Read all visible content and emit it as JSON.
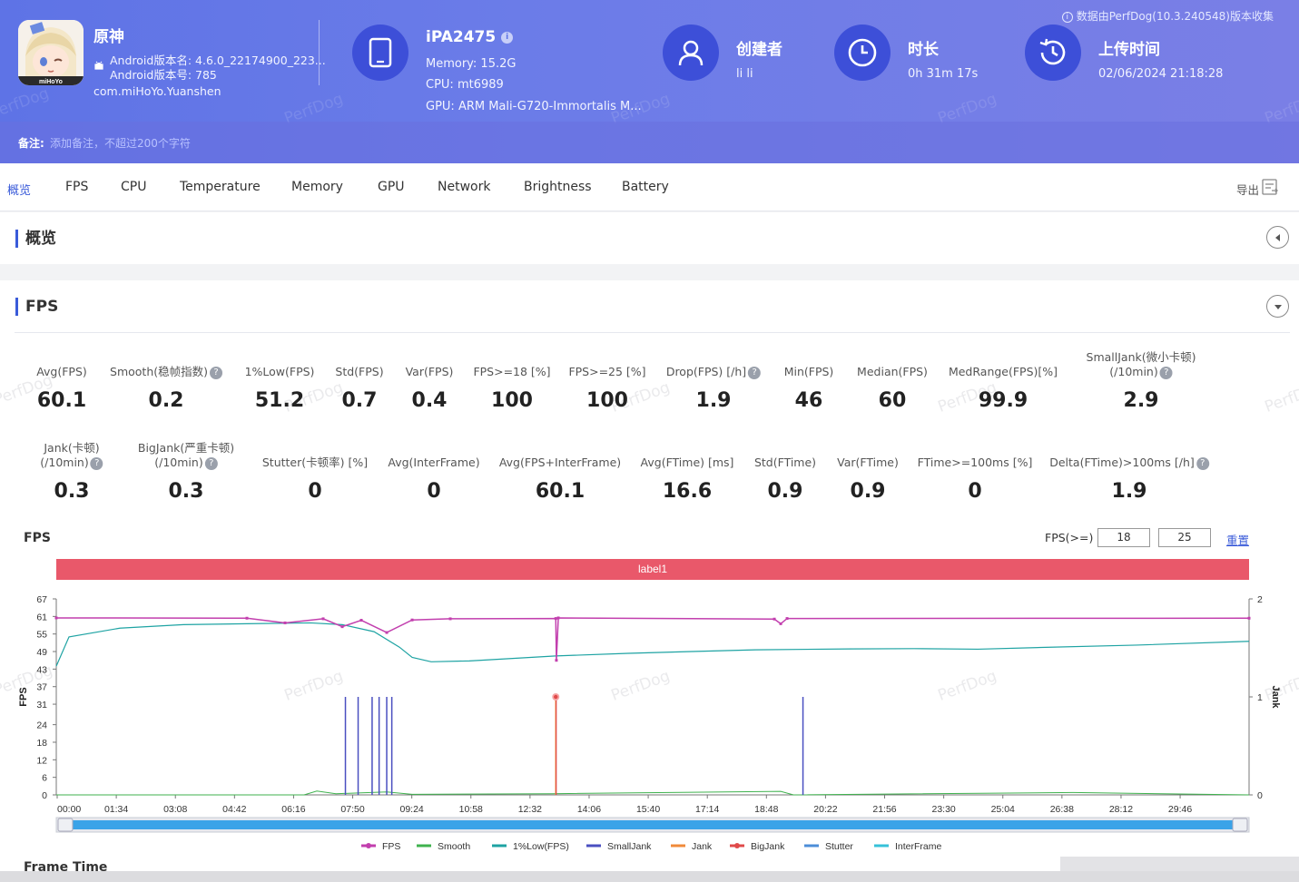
{
  "header": {
    "note": "数据由PerfDog(10.3.240548)版本收集",
    "app": {
      "name": "原神",
      "version_name": "Android版本名: 4.6.0_22174900_223...",
      "version_code": "Android版本号: 785",
      "package": "com.miHoYo.Yuanshen",
      "icon_text": "miHoYo"
    },
    "device": {
      "name": "iPA2475",
      "memory": "Memory: 15.2G",
      "cpu": "CPU: mt6989",
      "gpu": "GPU: ARM Mali-G720-Immortalis M..."
    },
    "creator": {
      "title": "创建者",
      "value": "li li"
    },
    "duration": {
      "title": "时长",
      "value": "0h 31m 17s"
    },
    "upload": {
      "title": "上传时间",
      "value": "02/06/2024 21:18:28"
    },
    "remark_label": "备注:",
    "remark_placeholder": "添加备注，不超过200个字符"
  },
  "tabs": [
    "概览",
    "FPS",
    "CPU",
    "Temperature",
    "Memory",
    "GPU",
    "Network",
    "Brightness",
    "Battery"
  ],
  "export_label": "导出",
  "overview_title": "概览",
  "fps_section_title": "FPS",
  "stats_row1": [
    {
      "label": "Avg(FPS)",
      "value": "60.1"
    },
    {
      "label": "Smooth(稳帧指数)",
      "value": "0.2",
      "help": true
    },
    {
      "label": "1%Low(FPS)",
      "value": "51.2"
    },
    {
      "label": "Std(FPS)",
      "value": "0.7"
    },
    {
      "label": "Var(FPS)",
      "value": "0.4"
    },
    {
      "label": "FPS>=18 [%]",
      "value": "100"
    },
    {
      "label": "FPS>=25 [%]",
      "value": "100"
    },
    {
      "label": "Drop(FPS) [/h]",
      "value": "1.9",
      "help": true
    },
    {
      "label": "Min(FPS)",
      "value": "46"
    },
    {
      "label": "Median(FPS)",
      "value": "60"
    },
    {
      "label": "MedRange(FPS)[%]",
      "value": "99.9"
    },
    {
      "label": "SmallJank(微小卡顿)",
      "label2": "(/10min)",
      "value": "2.9",
      "help": true
    }
  ],
  "stats_row2": [
    {
      "label": "Jank(卡顿)",
      "label2": "(/10min)",
      "value": "0.3",
      "help": true
    },
    {
      "label": "BigJank(严重卡顿)",
      "label2": "(/10min)",
      "value": "0.3",
      "help": true
    },
    {
      "label": "Stutter(卡顿率) [%]",
      "value": "0"
    },
    {
      "label": "Avg(InterFrame)",
      "value": "0"
    },
    {
      "label": "Avg(FPS+InterFrame)",
      "value": "60.1"
    },
    {
      "label": "Avg(FTime) [ms]",
      "value": "16.6"
    },
    {
      "label": "Std(FTime)",
      "value": "0.9"
    },
    {
      "label": "Var(FTime)",
      "value": "0.9"
    },
    {
      "label": "FTime>=100ms [%]",
      "value": "0"
    },
    {
      "label": "Delta(FTime)>100ms [/h]",
      "value": "1.9",
      "help": true
    }
  ],
  "chart_title": "FPS",
  "fps_threshold_label": "FPS(>=)",
  "fps_threshold_1": "18",
  "fps_threshold_2": "25",
  "reset_label": "重置",
  "frame_time_title": "Frame Time",
  "watermark": "PerfDog",
  "colors": {
    "accent": "#3a5bd9",
    "fps": "#c23fae",
    "smooth": "#3fb24e",
    "low": "#1ea3a3",
    "smalljank": "#4a4fc0",
    "jank": "#f08a3a",
    "bigjank": "#e04a4a",
    "stutter": "#4c8ed8",
    "interframe": "#36c1d9",
    "label_band": "#e9586a"
  },
  "chart_data": {
    "type": "line",
    "label_band": "label1",
    "x_ticks": [
      "00:00",
      "01:34",
      "03:08",
      "04:42",
      "06:16",
      "07:50",
      "09:24",
      "10:58",
      "12:32",
      "14:06",
      "15:40",
      "17:14",
      "18:48",
      "20:22",
      "21:56",
      "23:30",
      "25:04",
      "26:38",
      "28:12",
      "29:46"
    ],
    "y_ticks": [
      0,
      6,
      12,
      18,
      24,
      31,
      37,
      43,
      49,
      55,
      61,
      67
    ],
    "ylim": [
      0,
      67
    ],
    "ylabel": "FPS",
    "y2_ticks": [
      0,
      1,
      2
    ],
    "y2lim": [
      0,
      2
    ],
    "y2label": "Jank",
    "x_range_seconds": [
      0,
      1877
    ],
    "legend_position": "bottom",
    "series": [
      {
        "name": "FPS",
        "points": [
          [
            0,
            60.5
          ],
          [
            300,
            60.4
          ],
          [
            360,
            58.8
          ],
          [
            420,
            60.2
          ],
          [
            450,
            57.5
          ],
          [
            480,
            59.7
          ],
          [
            520,
            55.5
          ],
          [
            560,
            59.8
          ],
          [
            620,
            60.2
          ],
          [
            786,
            60.3
          ],
          [
            787,
            46.0
          ],
          [
            790,
            60.5
          ],
          [
            1130,
            60.1
          ],
          [
            1140,
            58.5
          ],
          [
            1150,
            60.3
          ],
          [
            1877,
            60.4
          ]
        ]
      },
      {
        "name": "Smooth",
        "points": [
          [
            0,
            0
          ],
          [
            390,
            0
          ],
          [
            410,
            1.3
          ],
          [
            440,
            0.4
          ],
          [
            520,
            1.0
          ],
          [
            560,
            0.2
          ],
          [
            780,
            0.4
          ],
          [
            1140,
            1.2
          ],
          [
            1160,
            0
          ],
          [
            1600,
            0.8
          ],
          [
            1877,
            0
          ]
        ]
      },
      {
        "name": "1%Low(FPS)",
        "points": [
          [
            0,
            44
          ],
          [
            20,
            54
          ],
          [
            100,
            57
          ],
          [
            200,
            58.2
          ],
          [
            300,
            58.5
          ],
          [
            400,
            58.8
          ],
          [
            450,
            58.2
          ],
          [
            500,
            55.8
          ],
          [
            540,
            50.5
          ],
          [
            560,
            47
          ],
          [
            590,
            45.5
          ],
          [
            650,
            45.8
          ],
          [
            786,
            47.5
          ],
          [
            900,
            48.4
          ],
          [
            1000,
            49
          ],
          [
            1100,
            49.6
          ],
          [
            1250,
            49.9
          ],
          [
            1350,
            50
          ],
          [
            1450,
            49.8
          ],
          [
            1550,
            50.4
          ],
          [
            1700,
            51.2
          ],
          [
            1877,
            52.5
          ]
        ]
      },
      {
        "name": "SmallJank",
        "points": [
          [
            455,
            1
          ],
          [
            475,
            1
          ],
          [
            497,
            1
          ],
          [
            508,
            1
          ],
          [
            520,
            1
          ],
          [
            528,
            1
          ],
          [
            1175,
            1
          ]
        ]
      },
      {
        "name": "Jank",
        "points": [
          [
            786,
            1
          ]
        ]
      },
      {
        "name": "BigJank",
        "points": [
          [
            786,
            1
          ]
        ]
      },
      {
        "name": "Stutter",
        "points": []
      },
      {
        "name": "InterFrame",
        "points": []
      }
    ]
  }
}
